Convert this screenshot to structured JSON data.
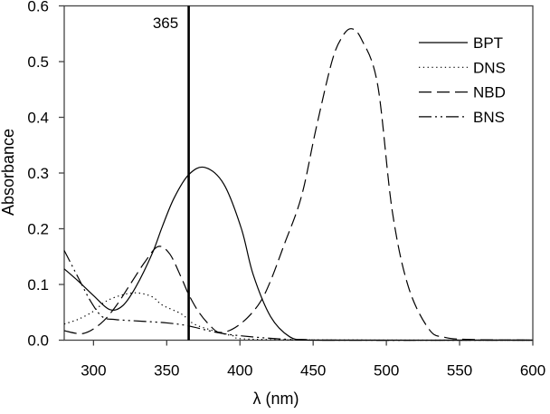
{
  "chart_data": {
    "type": "line",
    "title": "",
    "xlabel": "λ (nm)",
    "ylabel": "Absorbance",
    "xlim": [
      280,
      600
    ],
    "ylim": [
      0,
      0.6
    ],
    "xticks": [
      300,
      350,
      400,
      450,
      500,
      550,
      600
    ],
    "yticks": [
      "0.0",
      "0.1",
      "0.2",
      "0.3",
      "0.4",
      "0.5",
      "0.6"
    ],
    "grid": false,
    "legend_position": "top-right",
    "annotation": {
      "label": "365",
      "x": 365
    },
    "series": [
      {
        "name": "BPT",
        "style": "solid",
        "x": [
          280,
          290,
          300,
          311,
          320,
          329,
          340,
          347,
          355,
          365,
          376,
          389,
          401,
          409,
          421,
          434,
          445,
          460,
          600
        ],
        "y": [
          0.128,
          0.105,
          0.08,
          0.055,
          0.062,
          0.096,
          0.155,
          0.204,
          0.255,
          0.297,
          0.31,
          0.28,
          0.2,
          0.118,
          0.042,
          0.006,
          0.001,
          0,
          0
        ]
      },
      {
        "name": "DNS",
        "style": "dotted",
        "x": [
          280,
          290,
          300,
          308,
          318,
          329,
          340,
          347,
          360,
          368,
          378,
          395,
          420,
          600
        ],
        "y": [
          0.029,
          0.038,
          0.052,
          0.069,
          0.08,
          0.085,
          0.078,
          0.063,
          0.047,
          0.03,
          0.02,
          0.008,
          0.001,
          0
        ]
      },
      {
        "name": "NBD",
        "style": "dashed",
        "x": [
          280,
          293,
          305,
          315,
          325,
          335,
          344,
          352,
          360,
          365,
          372,
          380,
          386,
          395,
          405,
          414,
          421,
          430,
          442,
          452,
          463,
          470,
          476,
          483,
          494,
          504,
          515,
          529,
          540,
          560,
          600
        ],
        "y": [
          0.017,
          0.012,
          0.03,
          0.06,
          0.1,
          0.14,
          0.168,
          0.155,
          0.112,
          0.082,
          0.05,
          0.025,
          0.014,
          0.02,
          0.04,
          0.069,
          0.107,
          0.17,
          0.258,
          0.38,
          0.502,
          0.545,
          0.559,
          0.54,
          0.459,
          0.232,
          0.096,
          0.02,
          0.005,
          0.001,
          0
        ]
      },
      {
        "name": "BNS",
        "style": "dash-dot-dot",
        "x": [
          280,
          290,
          298,
          306,
          315,
          333,
          350,
          364,
          384,
          400,
          429,
          460,
          600
        ],
        "y": [
          0.161,
          0.11,
          0.07,
          0.042,
          0.037,
          0.034,
          0.031,
          0.026,
          0.014,
          0.008,
          0.002,
          0,
          0
        ]
      }
    ]
  }
}
